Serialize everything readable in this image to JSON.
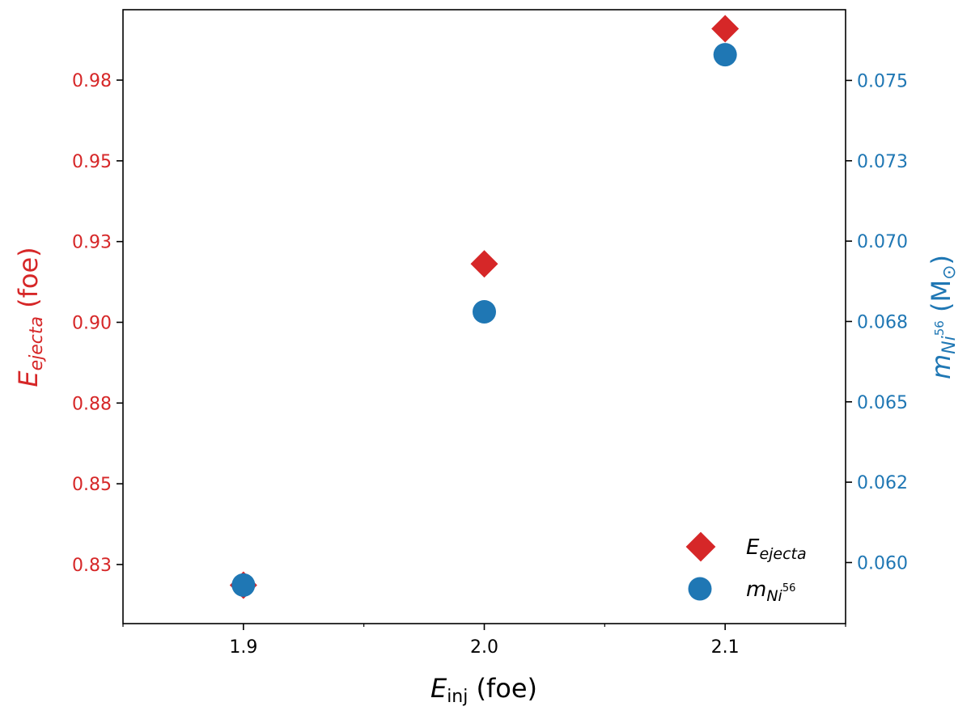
{
  "chart_data": {
    "type": "scatter",
    "x_axis": {
      "label_main": "E",
      "label_sub": "inj",
      "label_unit": " (foe)",
      "lim": [
        1.85,
        2.15
      ],
      "ticks": [
        1.9,
        2.0,
        2.1
      ],
      "tick_labels": [
        "1.9",
        "2.0",
        "2.1"
      ],
      "minor_ticks": [
        1.85,
        1.95,
        2.05,
        2.15
      ]
    },
    "y_left": {
      "label_main": "E",
      "label_sub": "ejecta",
      "label_unit": " (foe)",
      "color": "#d62728",
      "lim": [
        0.8117,
        1.0018
      ],
      "ticks": [
        0.83,
        0.855,
        0.88,
        0.905,
        0.93,
        0.955,
        0.98
      ],
      "tick_labels": [
        "0.83",
        "0.85",
        "0.88",
        "0.90",
        "0.93",
        "0.95",
        "0.98"
      ]
    },
    "y_right": {
      "label_main": "m",
      "label_sub": "Ni",
      "label_sup": "56",
      "label_unit": " (M",
      "label_sun": "⊙",
      "label_close": ")",
      "color": "#1f77b4",
      "lim": [
        0.0581,
        0.0772
      ],
      "ticks": [
        0.06,
        0.0625,
        0.065,
        0.0675,
        0.07,
        0.0725,
        0.075
      ],
      "tick_labels": [
        "0.060",
        "0.062",
        "0.065",
        "0.068",
        "0.070",
        "0.073",
        "0.075"
      ]
    },
    "series": [
      {
        "name_main": "E",
        "name_sub": "ejecta",
        "axis": "left",
        "marker": "diamond",
        "color": "#d62728",
        "x": [
          1.9,
          2.0,
          2.1
        ],
        "y": [
          0.8236,
          0.9231,
          0.9959
        ]
      },
      {
        "name_main": "m",
        "name_sub": "Ni",
        "name_sup": "56",
        "axis": "right",
        "marker": "circle",
        "color": "#1f77b4",
        "x": [
          1.9,
          2.0,
          2.1
        ],
        "y": [
          0.0593,
          0.0678,
          0.0758
        ]
      }
    ],
    "legend_position": "lower-right",
    "grid": false
  }
}
